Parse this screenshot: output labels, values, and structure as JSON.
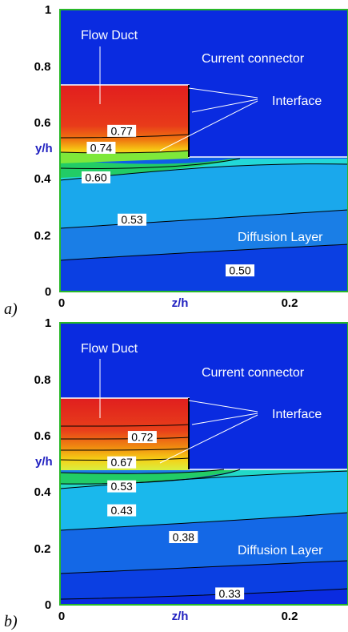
{
  "chart_data": [
    {
      "type": "contour",
      "panel_tag": "a)",
      "ylabel": "y/h",
      "xlabel": "z/h",
      "y_ticks": [
        "0",
        "0.2",
        "0.4",
        "0.6",
        "0.8",
        "1"
      ],
      "x_ticks": [
        "0",
        "0.2"
      ],
      "ylim": [
        0,
        1
      ],
      "xlim": [
        0,
        0.28
      ],
      "regions": [
        "Flow Duct",
        "Current connector",
        "Interface",
        "Diffusion Layer"
      ],
      "contour_labels": [
        {
          "text": "0.77",
          "value": 0.77,
          "z": 0.06,
          "y": 0.57
        },
        {
          "text": "0.74",
          "value": 0.74,
          "z": 0.04,
          "y": 0.51
        },
        {
          "text": "0.60",
          "value": 0.6,
          "z": 0.035,
          "y": 0.405
        },
        {
          "text": "0.53",
          "value": 0.53,
          "z": 0.07,
          "y": 0.255
        },
        {
          "text": "0.50",
          "value": 0.5,
          "z": 0.175,
          "y": 0.075
        }
      ]
    },
    {
      "type": "contour",
      "panel_tag": "b)",
      "ylabel": "y/h",
      "xlabel": "z/h",
      "y_ticks": [
        "0",
        "0.2",
        "0.4",
        "0.6",
        "0.8",
        "1"
      ],
      "x_ticks": [
        "0",
        "0.2"
      ],
      "ylim": [
        0,
        1
      ],
      "xlim": [
        0,
        0.28
      ],
      "regions": [
        "Flow Duct",
        "Current connector",
        "Interface",
        "Diffusion Layer"
      ],
      "contour_labels": [
        {
          "text": "0.72",
          "value": 0.72,
          "z": 0.08,
          "y": 0.595
        },
        {
          "text": "0.67",
          "value": 0.67,
          "z": 0.06,
          "y": 0.505
        },
        {
          "text": "0.53",
          "value": 0.53,
          "z": 0.06,
          "y": 0.42
        },
        {
          "text": "0.43",
          "value": 0.43,
          "z": 0.06,
          "y": 0.335
        },
        {
          "text": "0.38",
          "value": 0.38,
          "z": 0.12,
          "y": 0.24
        },
        {
          "text": "0.33",
          "value": 0.33,
          "z": 0.165,
          "y": 0.04
        }
      ]
    }
  ]
}
